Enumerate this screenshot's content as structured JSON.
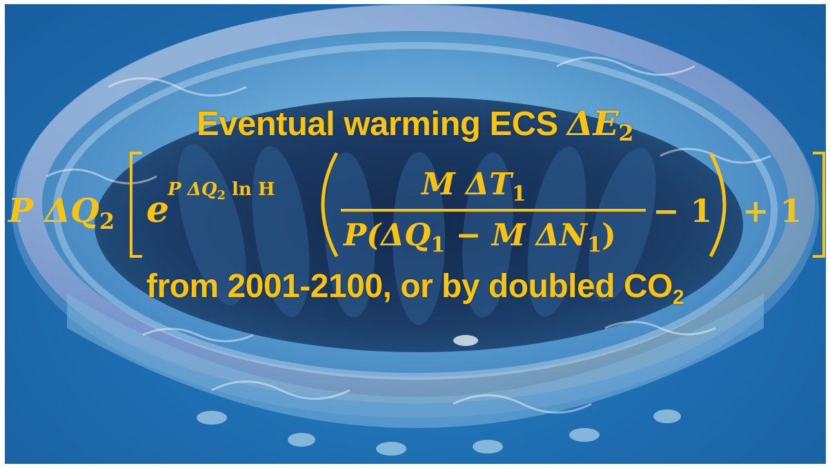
{
  "headline": {
    "prefix": "Eventual warming ECS ",
    "symbol": "ΔE",
    "subscript": "2"
  },
  "formula": {
    "lead": "P ΔQ",
    "lead_sub": "2",
    "exp_base": "e",
    "exponent": "P ΔQ",
    "exponent_sub": "2",
    "exponent_tail": " ln H",
    "numerator": "M ΔT",
    "numerator_sub": "1",
    "denominator_a": "P(ΔQ",
    "denominator_a_sub": "1",
    "denominator_b": " − M ΔN",
    "denominator_b_sub": "1",
    "denominator_close": ")",
    "minus_one": "− 1",
    "plus_one": "+ 1"
  },
  "footer": {
    "text": "from 2001-2100, or by doubled CO",
    "subscript": "2"
  },
  "colors": {
    "text_gold": "#f8c313",
    "water_blue": "#1f6fb3"
  }
}
